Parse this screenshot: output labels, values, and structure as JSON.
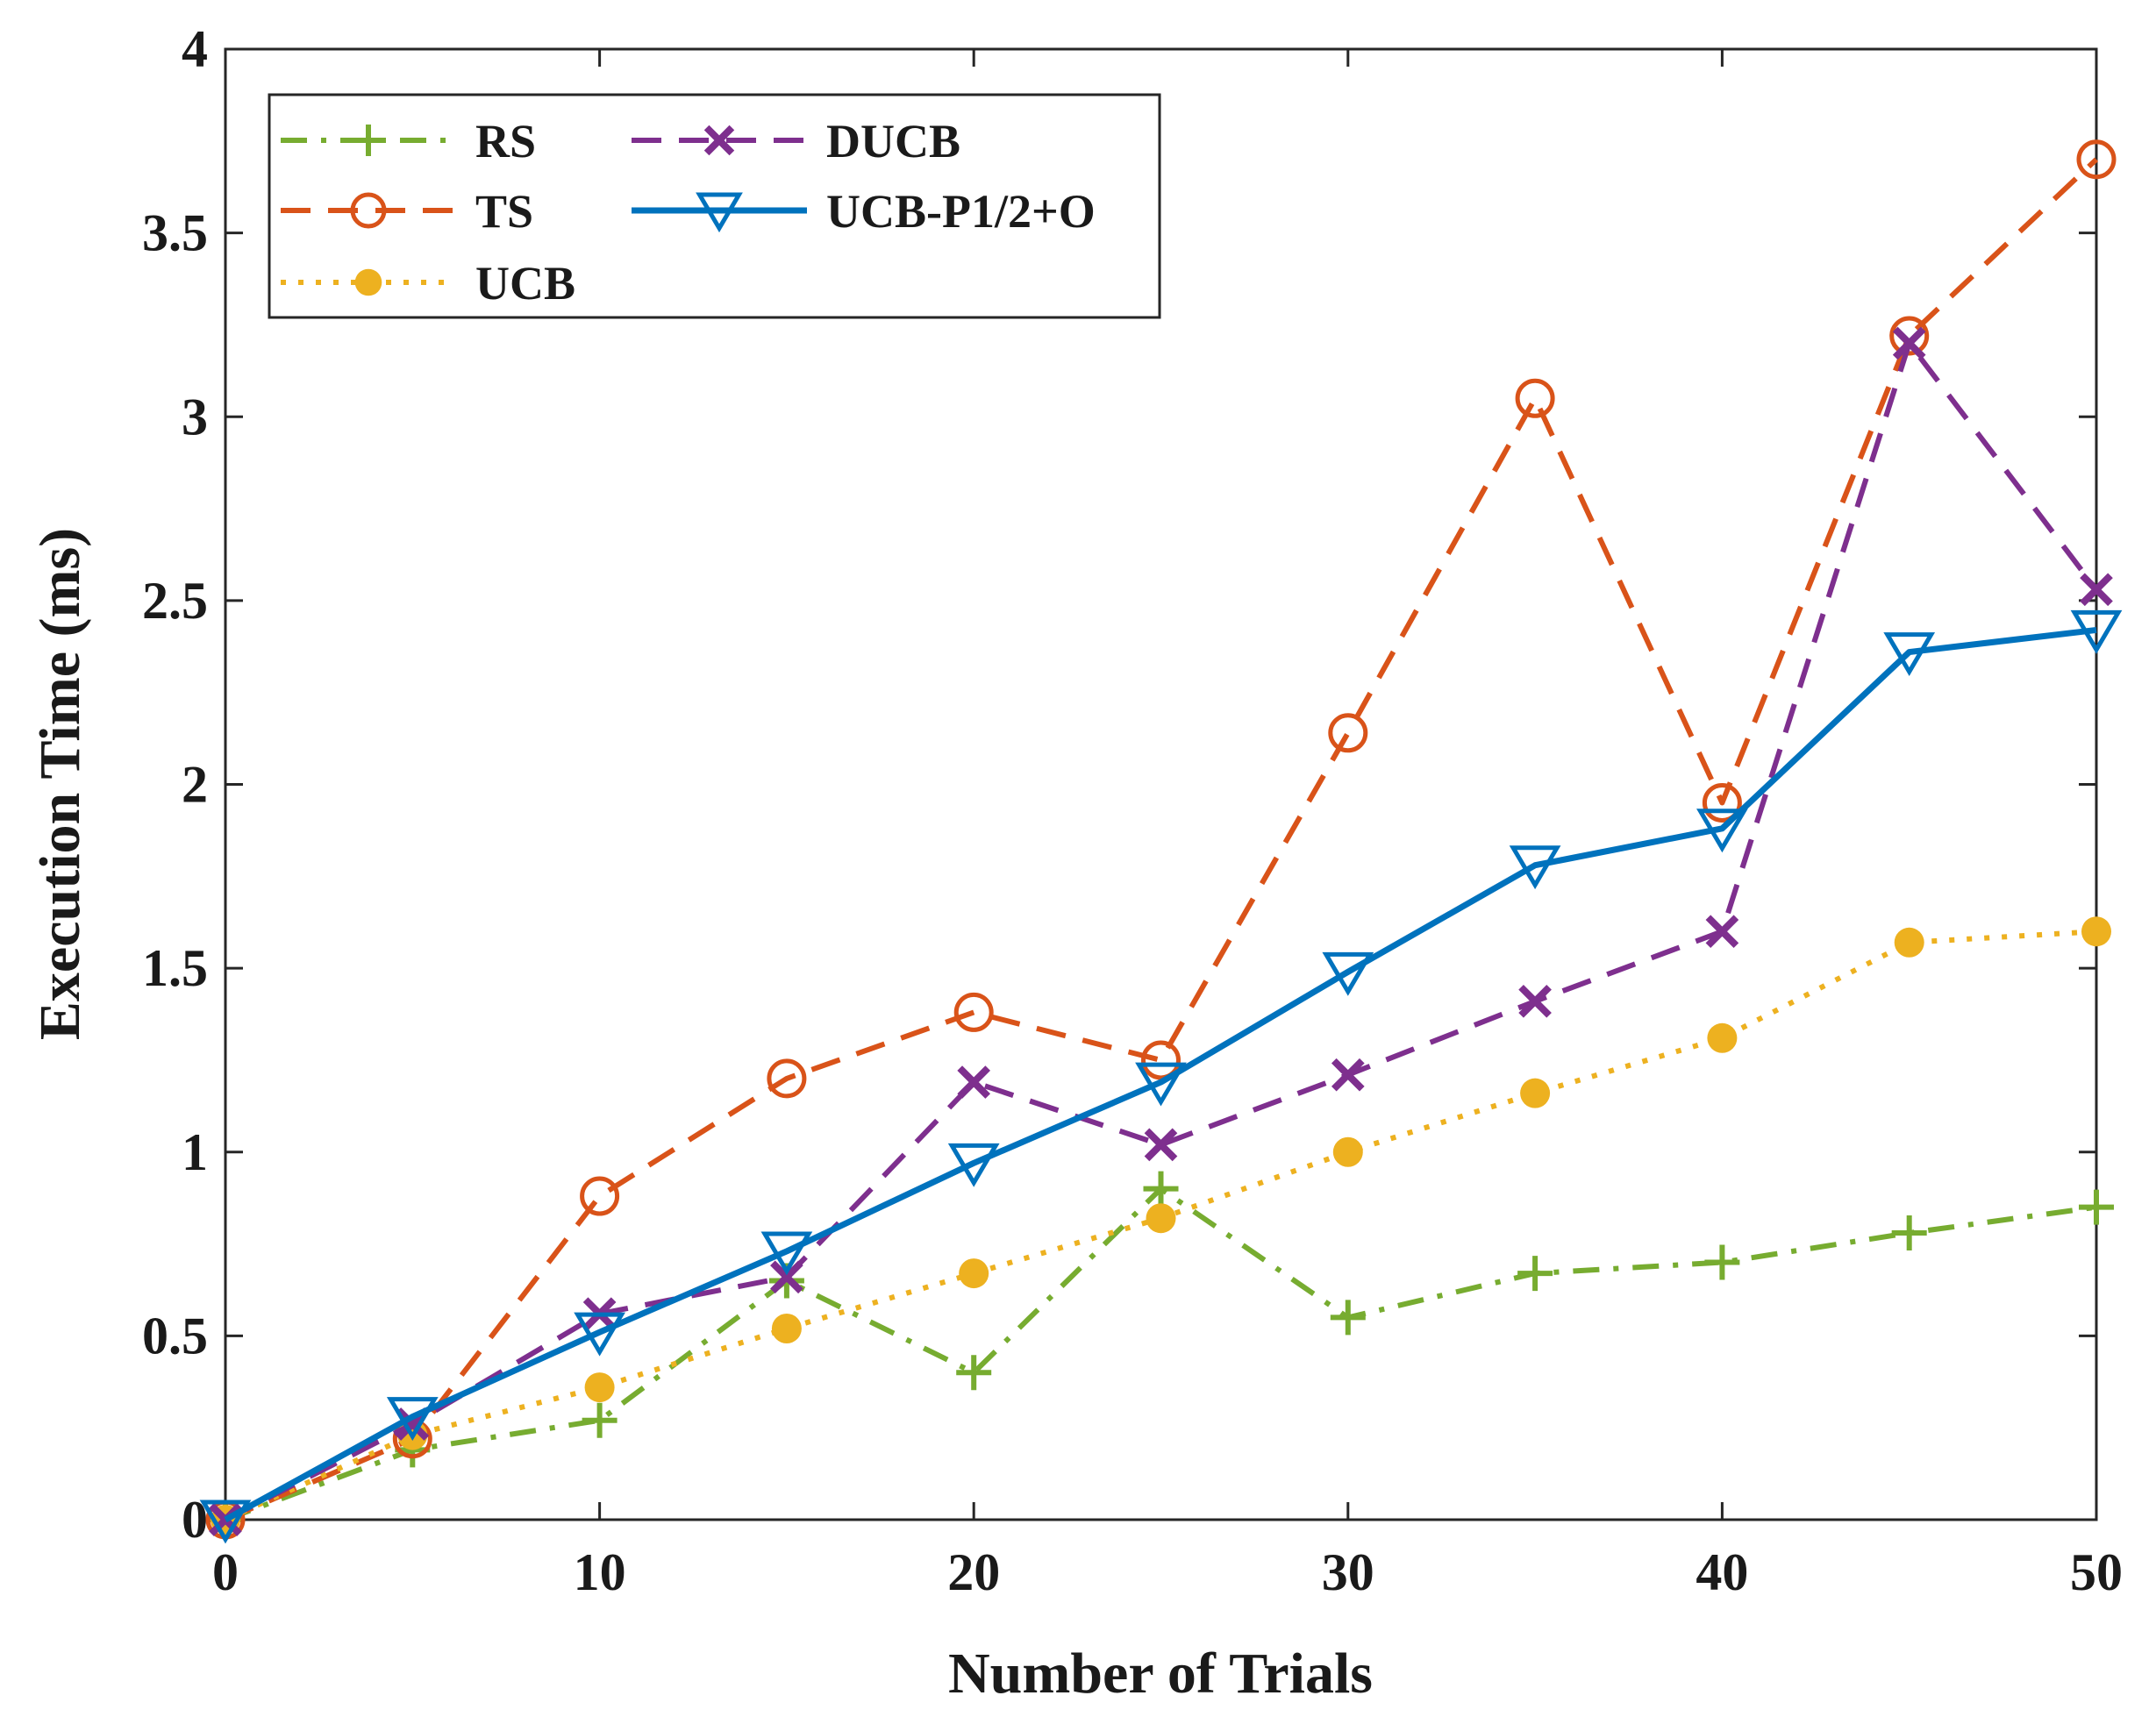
{
  "chart_data": {
    "type": "line",
    "title": "",
    "xlabel": "Number of Trials",
    "ylabel": "Execution Time (ms)",
    "xlim": [
      0,
      50
    ],
    "ylim": [
      0,
      4
    ],
    "xticks": [
      0,
      10,
      20,
      30,
      40,
      50
    ],
    "yticks": [
      0,
      0.5,
      1,
      1.5,
      2,
      2.5,
      3,
      3.5,
      4
    ],
    "x": [
      0,
      5,
      10,
      15,
      20,
      25,
      30,
      35,
      40,
      45,
      50
    ],
    "grid": false,
    "legend_position": "top-left",
    "series": [
      {
        "name": "RS",
        "color": "#77ac30",
        "dash": "dashdot",
        "marker": "plus",
        "values": [
          0,
          0.19,
          0.27,
          0.65,
          0.4,
          0.9,
          0.55,
          0.67,
          0.7,
          0.78,
          0.85
        ]
      },
      {
        "name": "TS",
        "color": "#d95319",
        "dash": "dashed",
        "marker": "circle-open",
        "values": [
          0,
          0.22,
          0.88,
          1.2,
          1.38,
          1.25,
          2.14,
          3.05,
          1.95,
          3.22,
          3.7
        ]
      },
      {
        "name": "UCB",
        "color": "#edb120",
        "dash": "dotted",
        "marker": "circle-filled",
        "values": [
          0,
          0.23,
          0.36,
          0.52,
          0.67,
          0.82,
          1.0,
          1.16,
          1.31,
          1.57,
          1.6
        ]
      },
      {
        "name": "DUCB",
        "color": "#7e2f8e",
        "dash": "dashed",
        "marker": "x",
        "values": [
          0,
          0.26,
          0.56,
          0.66,
          1.19,
          1.02,
          1.21,
          1.41,
          1.6,
          3.2,
          2.53
        ]
      },
      {
        "name": "UCB-P1/2+O",
        "color": "#0072bd",
        "dash": "solid",
        "marker": "triangle-down",
        "values": [
          0,
          0.28,
          0.51,
          0.73,
          0.97,
          1.19,
          1.49,
          1.78,
          1.88,
          2.36,
          2.42
        ]
      }
    ]
  }
}
